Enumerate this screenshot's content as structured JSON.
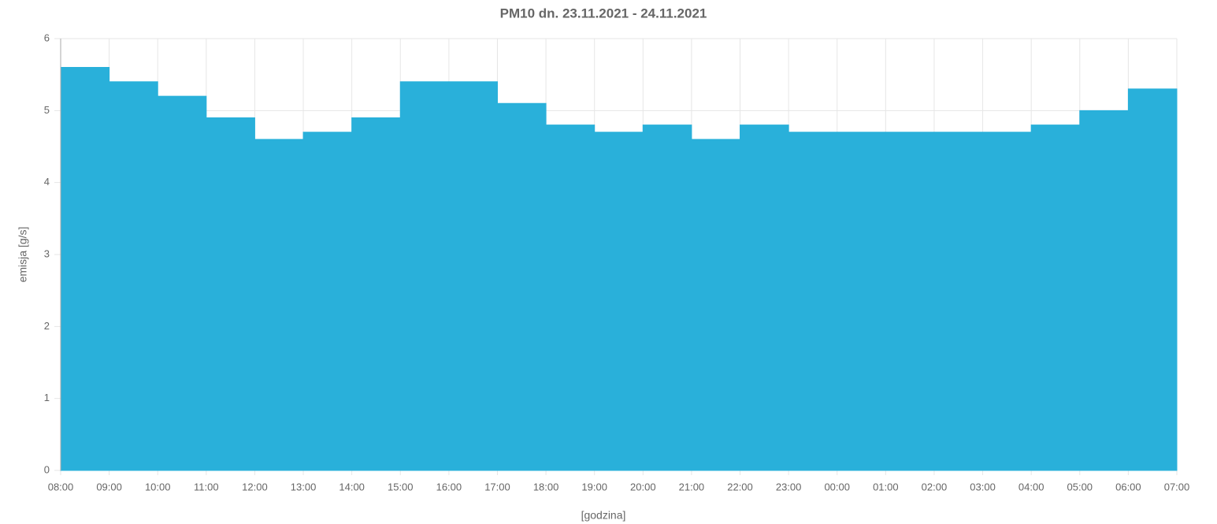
{
  "chart_data": {
    "type": "line",
    "stepped": true,
    "fill": true,
    "title": "PM10 dn. 23.11.2021 - 24.11.2021",
    "x_label": "[godzina]",
    "y_label": "emisja [g/s]",
    "categories": [
      "08:00",
      "09:00",
      "10:00",
      "11:00",
      "12:00",
      "13:00",
      "14:00",
      "15:00",
      "16:00",
      "17:00",
      "18:00",
      "19:00",
      "20:00",
      "21:00",
      "22:00",
      "23:00",
      "00:00",
      "01:00",
      "02:00",
      "03:00",
      "04:00",
      "05:00",
      "06:00",
      "07:00"
    ],
    "series": [
      {
        "name": "PM10",
        "color": "#29b0da",
        "values": [
          5.6,
          5.4,
          5.2,
          4.9,
          4.6,
          4.7,
          4.9,
          5.4,
          5.4,
          5.1,
          4.8,
          4.7,
          4.8,
          4.6,
          4.8,
          4.7,
          4.7,
          4.7,
          4.7,
          4.7,
          4.8,
          5.0,
          5.3,
          5.3
        ]
      }
    ],
    "ylim": [
      0,
      6
    ],
    "yticks": [
      0,
      1,
      2,
      3,
      4,
      5,
      6
    ],
    "grid": true
  }
}
